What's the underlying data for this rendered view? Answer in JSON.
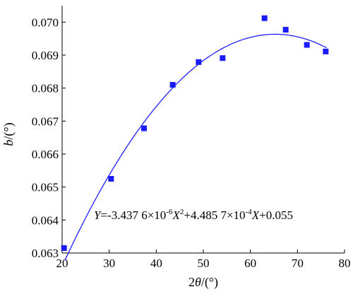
{
  "chart_data": {
    "type": "scatter",
    "title": "",
    "xlabel": {
      "prefix": "2",
      "symbol": "θ",
      "unit": "/(°)"
    },
    "ylabel": {
      "symbol": "b",
      "unit": "/(°)"
    },
    "xlim": [
      20,
      80
    ],
    "ylim": [
      0.063,
      0.0705
    ],
    "xticks": [
      20,
      30,
      40,
      50,
      60,
      70,
      80
    ],
    "xtick_labels": [
      "20",
      "30",
      "40",
      "50",
      "60",
      "70",
      "80"
    ],
    "yticks": [
      0.063,
      0.064,
      0.065,
      0.066,
      0.067,
      0.068,
      0.069,
      0.07
    ],
    "ytick_labels": [
      "0.063",
      "0.064",
      "0.065",
      "0.066",
      "0.067",
      "0.068",
      "0.069",
      "0.070"
    ],
    "grid": false,
    "series": [
      {
        "kind": "markers",
        "marker": "square",
        "color": "#1a1aff",
        "x": [
          20.4,
          30.4,
          37.4,
          43.5,
          49.0,
          54.1,
          63.0,
          67.5,
          72.0,
          76.0
        ],
        "y": [
          0.06315,
          0.06525,
          0.06678,
          0.0681,
          0.06879,
          0.06891,
          0.07012,
          0.06977,
          0.06931,
          0.06911
        ]
      },
      {
        "kind": "fit-line",
        "color": "#2020ff",
        "coefficients": {
          "a": -3.4376e-06,
          "b": 0.00044857,
          "c": 0.055
        },
        "x_range": [
          20.6,
          76.2
        ]
      }
    ],
    "annotation": {
      "y_var": "Y",
      "parts": [
        "=-3.437 6×10",
        "-6",
        "X",
        "2",
        "+4.485 7×10",
        "-4",
        "X",
        "+0.055"
      ]
    }
  }
}
